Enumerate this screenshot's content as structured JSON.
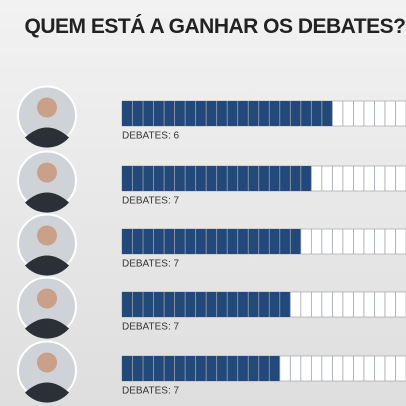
{
  "chart_data": {
    "type": "bar",
    "orientation": "horizontal",
    "title": "QUEM ESTÁ A GANHAR OS DEBATES?",
    "values": [
      20,
      18,
      17,
      16,
      15
    ],
    "labels": [
      "DEBATES: 6",
      "DEBATES: 7",
      "DEBATES: 7",
      "DEBATES: 7",
      "DEBATES: 7"
    ],
    "xlim": [
      0,
      27
    ],
    "color": "#22497a"
  }
}
